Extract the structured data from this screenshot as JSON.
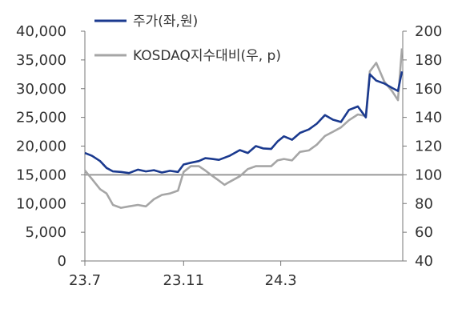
{
  "chart_data": {
    "type": "line",
    "title": "",
    "xlabel": "",
    "ylabel_left": "",
    "ylabel_right": "",
    "x_ticks": [
      "23.7",
      "23.11",
      "24.3"
    ],
    "y_left": {
      "ylim": [
        0,
        40000
      ],
      "ticks": [
        "0",
        "5,000",
        "10,000",
        "15,000",
        "20,000",
        "25,000",
        "30,000",
        "35,000",
        "40,000"
      ]
    },
    "y_right": {
      "ylim": [
        40,
        200
      ],
      "ticks": [
        "40",
        "60",
        "80",
        "100",
        "120",
        "140",
        "160",
        "180",
        "200"
      ]
    },
    "reference_line": {
      "axis": "right",
      "value": 100,
      "color": "#999999"
    },
    "grid": false,
    "legend_position": "top",
    "series": [
      {
        "name": "주가(좌,원)",
        "axis": "left",
        "color": "#1b3a8f",
        "points": [
          [
            "2023-07-01",
            18800
          ],
          [
            "2023-07-10",
            18300
          ],
          [
            "2023-07-20",
            17400
          ],
          [
            "2023-07-28",
            16200
          ],
          [
            "2023-08-05",
            15600
          ],
          [
            "2023-08-15",
            15500
          ],
          [
            "2023-08-25",
            15300
          ],
          [
            "2023-09-05",
            15900
          ],
          [
            "2023-09-15",
            15600
          ],
          [
            "2023-09-25",
            15800
          ],
          [
            "2023-10-05",
            15400
          ],
          [
            "2023-10-15",
            15700
          ],
          [
            "2023-10-25",
            15500
          ],
          [
            "2023-11-01",
            16800
          ],
          [
            "2023-11-10",
            17100
          ],
          [
            "2023-11-20",
            17400
          ],
          [
            "2023-11-28",
            17900
          ],
          [
            "2023-12-05",
            17800
          ],
          [
            "2023-12-15",
            17600
          ],
          [
            "2023-12-28",
            18300
          ],
          [
            "2024-01-10",
            19300
          ],
          [
            "2024-01-20",
            18800
          ],
          [
            "2024-01-30",
            20000
          ],
          [
            "2024-02-08",
            19600
          ],
          [
            "2024-02-18",
            19500
          ],
          [
            "2024-02-26",
            20800
          ],
          [
            "2024-03-05",
            21700
          ],
          [
            "2024-03-15",
            21100
          ],
          [
            "2024-03-25",
            22300
          ],
          [
            "2024-04-05",
            22900
          ],
          [
            "2024-04-15",
            23900
          ],
          [
            "2024-04-25",
            25400
          ],
          [
            "2024-05-05",
            24600
          ],
          [
            "2024-05-15",
            24200
          ],
          [
            "2024-05-25",
            26300
          ],
          [
            "2024-06-05",
            26900
          ],
          [
            "2024-06-15",
            25000
          ],
          [
            "2024-06-20",
            32500
          ],
          [
            "2024-06-28",
            31400
          ],
          [
            "2024-07-08",
            30900
          ],
          [
            "2024-07-18",
            30100
          ],
          [
            "2024-07-25",
            29600
          ],
          [
            "2024-07-30",
            33000
          ]
        ]
      },
      {
        "name": "KOSDAQ지수대비(우, p)",
        "axis": "right",
        "color": "#a6a6a6",
        "points": [
          [
            "2023-07-01",
            103
          ],
          [
            "2023-07-10",
            97
          ],
          [
            "2023-07-20",
            90
          ],
          [
            "2023-07-28",
            87
          ],
          [
            "2023-08-05",
            79
          ],
          [
            "2023-08-15",
            77
          ],
          [
            "2023-08-25",
            78
          ],
          [
            "2023-09-05",
            79
          ],
          [
            "2023-09-15",
            78
          ],
          [
            "2023-09-25",
            83
          ],
          [
            "2023-10-05",
            86
          ],
          [
            "2023-10-15",
            87
          ],
          [
            "2023-10-25",
            89
          ],
          [
            "2023-11-01",
            102
          ],
          [
            "2023-11-10",
            106
          ],
          [
            "2023-11-20",
            106
          ],
          [
            "2023-11-28",
            103
          ],
          [
            "2023-12-05",
            100
          ],
          [
            "2023-12-15",
            96
          ],
          [
            "2023-12-22",
            93
          ],
          [
            "2023-12-28",
            95
          ],
          [
            "2024-01-10",
            99
          ],
          [
            "2024-01-20",
            104
          ],
          [
            "2024-01-30",
            106
          ],
          [
            "2024-02-08",
            106
          ],
          [
            "2024-02-18",
            106
          ],
          [
            "2024-02-26",
            110
          ],
          [
            "2024-03-05",
            111
          ],
          [
            "2024-03-15",
            110
          ],
          [
            "2024-03-25",
            116
          ],
          [
            "2024-04-05",
            117
          ],
          [
            "2024-04-15",
            121
          ],
          [
            "2024-04-25",
            127
          ],
          [
            "2024-05-05",
            130
          ],
          [
            "2024-05-15",
            133
          ],
          [
            "2024-05-25",
            138
          ],
          [
            "2024-06-05",
            142
          ],
          [
            "2024-06-15",
            141
          ],
          [
            "2024-06-20",
            172
          ],
          [
            "2024-06-28",
            178
          ],
          [
            "2024-07-08",
            165
          ],
          [
            "2024-07-18",
            158
          ],
          [
            "2024-07-25",
            152
          ],
          [
            "2024-07-30",
            188
          ]
        ]
      }
    ]
  }
}
